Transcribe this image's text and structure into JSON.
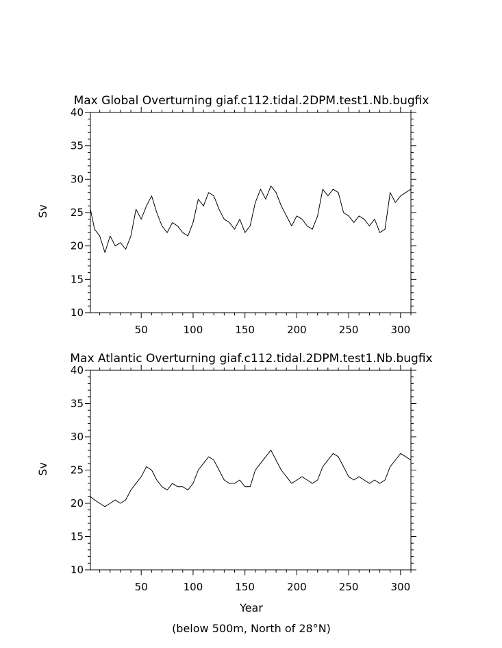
{
  "chart_data": [
    {
      "type": "line",
      "title": "Max Global Overturning giaf.c112.tidal.2DPM.test1.Nb.bugfix",
      "xlabel": "",
      "ylabel": "Sv",
      "xlim": [
        1,
        310
      ],
      "ylim": [
        10,
        40
      ],
      "xticks": [
        50,
        100,
        150,
        200,
        250,
        300
      ],
      "yticks": [
        10,
        15,
        20,
        25,
        30,
        35,
        40
      ],
      "grid": false,
      "series": [
        {
          "name": "Max Global Overturning",
          "x": [
            1,
            5,
            10,
            15,
            20,
            25,
            30,
            35,
            40,
            45,
            50,
            55,
            60,
            65,
            70,
            75,
            80,
            85,
            90,
            95,
            100,
            105,
            110,
            115,
            120,
            125,
            130,
            135,
            140,
            145,
            150,
            155,
            160,
            165,
            170,
            175,
            180,
            185,
            190,
            195,
            200,
            205,
            210,
            215,
            220,
            225,
            230,
            235,
            240,
            245,
            250,
            255,
            260,
            265,
            270,
            275,
            280,
            285,
            290,
            295,
            300,
            305,
            310
          ],
          "values": [
            25.5,
            22.5,
            21.5,
            19.0,
            21.5,
            20.0,
            20.5,
            19.5,
            21.5,
            25.5,
            24.0,
            26.0,
            27.5,
            25.0,
            23.0,
            22.0,
            23.5,
            23.0,
            22.0,
            21.5,
            23.5,
            27.0,
            26.0,
            28.0,
            27.5,
            25.5,
            24.0,
            23.5,
            22.5,
            24.0,
            22.0,
            23.0,
            26.5,
            28.5,
            27.0,
            29.0,
            28.0,
            26.0,
            24.5,
            23.0,
            24.5,
            24.0,
            23.0,
            22.5,
            24.5,
            28.5,
            27.5,
            28.5,
            28.0,
            25.0,
            24.5,
            23.5,
            24.5,
            24.0,
            23.0,
            24.0,
            22.0,
            22.5,
            28.0,
            26.5,
            27.5,
            28.0,
            28.5
          ]
        }
      ]
    },
    {
      "type": "line",
      "title": "Max Atlantic Overturning giaf.c112.tidal.2DPM.test1.Nb.bugfix",
      "xlabel": "Year",
      "ylabel": "Sv",
      "xlim": [
        1,
        310
      ],
      "ylim": [
        10,
        40
      ],
      "xticks": [
        50,
        100,
        150,
        200,
        250,
        300
      ],
      "yticks": [
        10,
        15,
        20,
        25,
        30,
        35,
        40
      ],
      "grid": false,
      "series": [
        {
          "name": "Max Atlantic Overturning",
          "x": [
            1,
            5,
            10,
            15,
            20,
            25,
            30,
            35,
            40,
            45,
            50,
            55,
            60,
            65,
            70,
            75,
            80,
            85,
            90,
            95,
            100,
            105,
            110,
            115,
            120,
            125,
            130,
            135,
            140,
            145,
            150,
            155,
            160,
            165,
            170,
            175,
            180,
            185,
            190,
            195,
            200,
            205,
            210,
            215,
            220,
            225,
            230,
            235,
            240,
            245,
            250,
            255,
            260,
            265,
            270,
            275,
            280,
            285,
            290,
            295,
            300,
            305,
            310
          ],
          "values": [
            21.0,
            20.5,
            20.0,
            19.5,
            20.0,
            20.5,
            20.0,
            20.5,
            22.0,
            23.0,
            24.0,
            25.5,
            25.0,
            23.5,
            22.5,
            22.0,
            23.0,
            22.5,
            22.5,
            22.0,
            23.0,
            25.0,
            26.0,
            27.0,
            26.5,
            25.0,
            23.5,
            23.0,
            23.0,
            23.5,
            22.5,
            22.5,
            25.0,
            26.0,
            27.0,
            28.0,
            26.5,
            25.0,
            24.0,
            23.0,
            23.5,
            24.0,
            23.5,
            23.0,
            23.5,
            25.5,
            26.5,
            27.5,
            27.0,
            25.5,
            24.0,
            23.5,
            24.0,
            23.5,
            23.0,
            23.5,
            23.0,
            23.5,
            25.5,
            26.5,
            27.5,
            27.0,
            26.5
          ]
        }
      ]
    }
  ],
  "footer_note": "(below 500m, North of 28°N)"
}
